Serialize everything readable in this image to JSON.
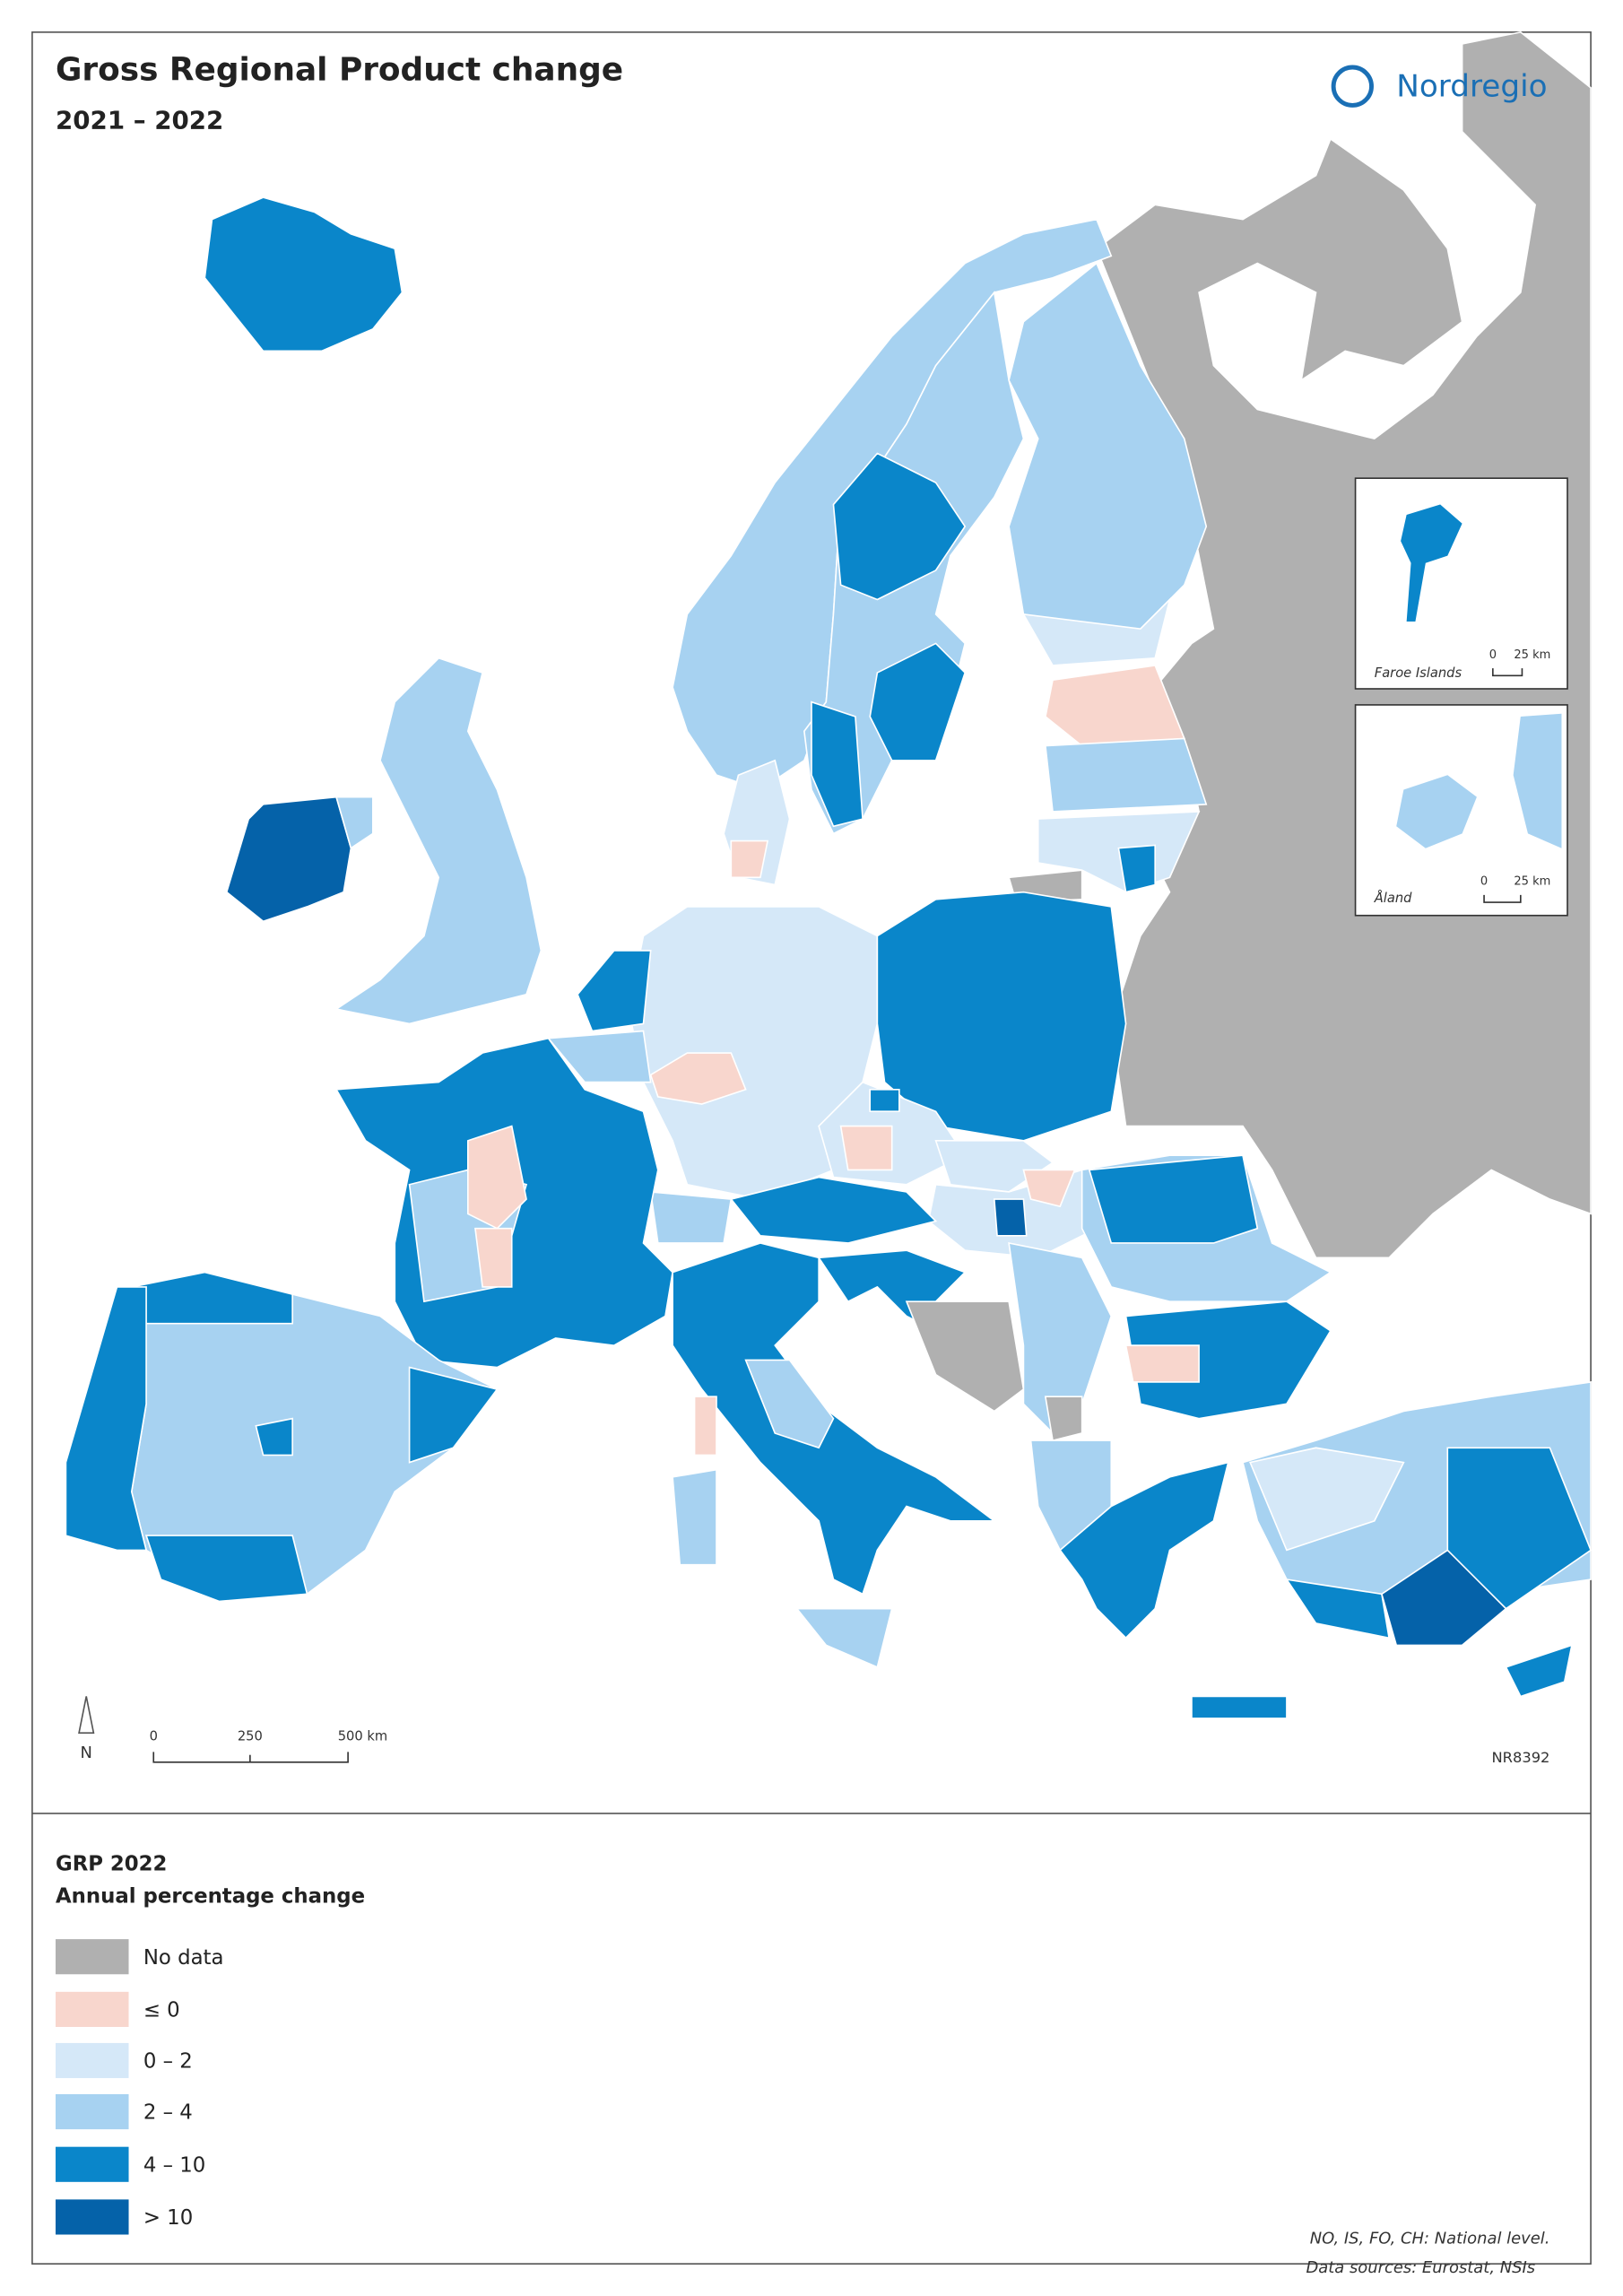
{
  "header": {
    "title": "Gross Regional Product change",
    "subtitle": "2021 – 2022",
    "logo": "Nordregio"
  },
  "map": {
    "north": "N",
    "scale": [
      "0",
      "250",
      "500 km"
    ],
    "code": "NR8392",
    "insets": [
      {
        "label": "Faroe Islands",
        "scale": [
          "0",
          "25 km"
        ]
      },
      {
        "label": "Åland",
        "scale": [
          "0",
          "25 km"
        ]
      }
    ]
  },
  "legend": {
    "title": "GRP 2022",
    "subtitle": "Annual percentage change",
    "items": [
      {
        "label": "No data",
        "color": "#b0b0b0"
      },
      {
        "label": "≤ 0",
        "color": "#f8d6cd"
      },
      {
        "label": "0 – 2",
        "color": "#d5e8f8"
      },
      {
        "label": "2 – 4",
        "color": "#a7d2f1"
      },
      {
        "label": "4 – 10",
        "color": "#0a86ca"
      },
      {
        "label": "> 10",
        "color": "#0562a9"
      }
    ]
  },
  "notes": [
    "NO, IS, FO, CH: National level.",
    "Data sources: Eurostat, NSIs"
  ]
}
